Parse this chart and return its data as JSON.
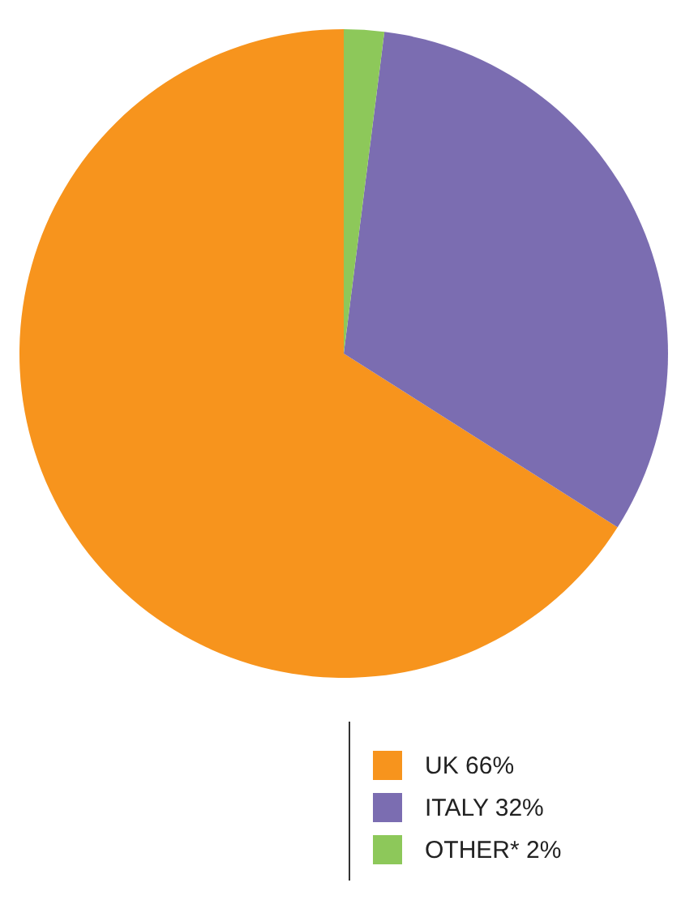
{
  "chart_data": {
    "type": "pie",
    "categories": [
      "UK",
      "ITALY",
      "OTHER*"
    ],
    "values": [
      66,
      32,
      2
    ],
    "value_labels": [
      "66%",
      "32%",
      "2%"
    ],
    "colors": [
      "#f7941d",
      "#7b6db1",
      "#8dc85a"
    ],
    "legend": "bottom"
  }
}
